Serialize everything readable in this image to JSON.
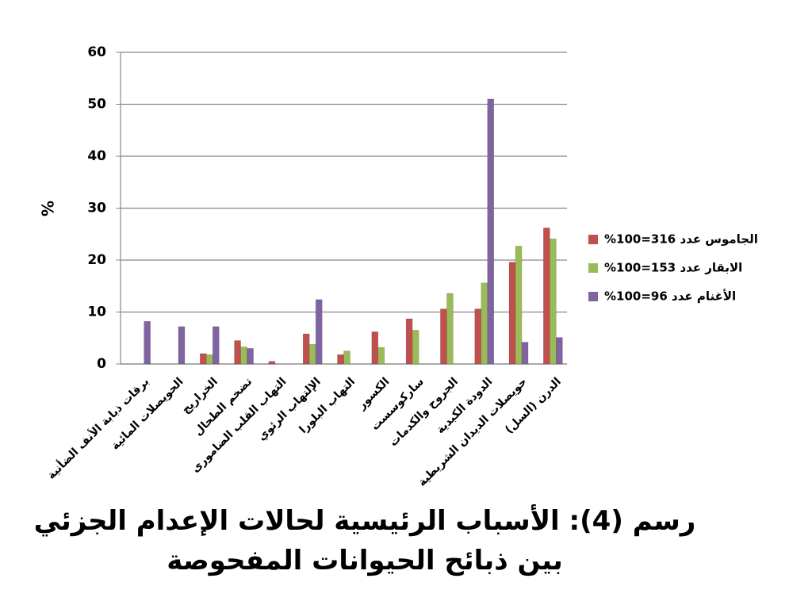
{
  "chart_data": {
    "type": "bar",
    "title": "رسم (4): الأسباب الرئيسية لحالات الإعدام الجزئي بين ذبائح الحيوانات المفحوصة",
    "ylabel": "%",
    "categories": [
      "برقات ذبابة الأنف الضأنية",
      "الحويصلات المائية",
      "الخراريج",
      "تضخم الطحال",
      "التهاب القلب الضامورى",
      "الإلتهاب الرئوي",
      "التهاب البلورا",
      "الكسور",
      "ساركوسست",
      "الجروح والكدمات",
      "الدودة الكبدية",
      "حويصلات الديدان الشريطية",
      "الدرن (السل)"
    ],
    "series": [
      {
        "name": "الجاموس عدد 316=100%",
        "color": "#c0504d",
        "values": [
          0,
          0,
          2,
          4.5,
          0.5,
          5.8,
          1.8,
          6.2,
          8.7,
          10.6,
          10.6,
          19.6,
          26.2
        ]
      },
      {
        "name": "الابقار عدد 153=100%",
        "color": "#9bbb59",
        "values": [
          0,
          0,
          1.8,
          3.3,
          0,
          3.8,
          2.5,
          3.2,
          6.5,
          13.6,
          15.6,
          22.7,
          24.1
        ]
      },
      {
        "name": "الأغنام عدد 96=100%",
        "color": "#8064a2",
        "values": [
          8.2,
          7.2,
          7.2,
          3,
          0,
          12.4,
          0,
          0,
          0,
          0,
          51,
          4.2,
          5.1
        ]
      }
    ],
    "ylim": [
      0,
      60
    ],
    "yticks": [
      0,
      10,
      20,
      30,
      40,
      50,
      60
    ],
    "grid": true,
    "legend": "right"
  }
}
